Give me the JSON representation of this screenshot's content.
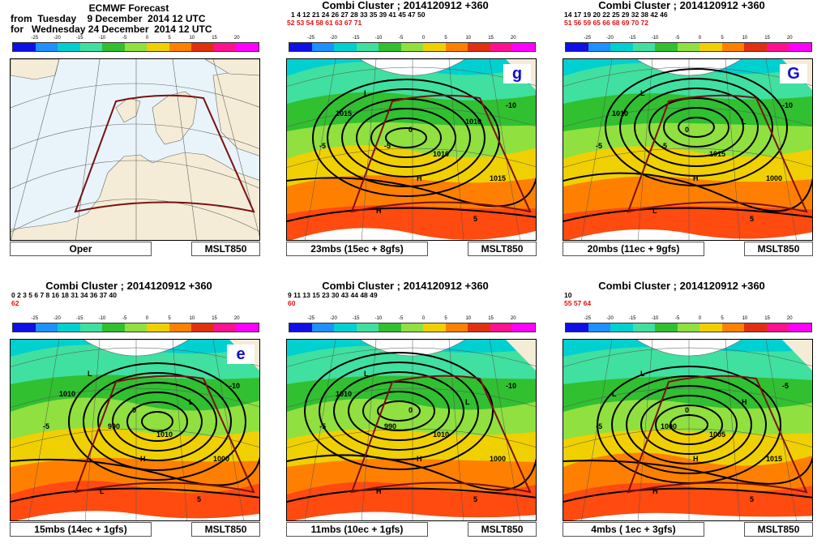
{
  "colorbar": {
    "ticks": [
      "-25",
      "-20",
      "-15",
      "-10",
      "-5",
      "0",
      "5",
      "10",
      "15",
      "20"
    ],
    "colors": [
      "#0f0fe6",
      "#1e90ff",
      "#00d0d0",
      "#40e0a0",
      "#30c030",
      "#90e040",
      "#f0d000",
      "#ff8000",
      "#e03010",
      "#ff1090",
      "#ff00ff"
    ]
  },
  "panels": [
    {
      "id": "oper",
      "title_line1": "ECMWF Forecast",
      "title_line2": "from  Tuesday    9 December  2014 12 UTC",
      "title_line3": "for   Wednesday 24 December  2014 12 UTC",
      "left_label": "Oper",
      "right_label": "MSLT850"
    },
    {
      "id": "g",
      "title": "Combi Cluster ; 2014120912 +360",
      "members_black": "1   4 12 21 24 26 27 28 33 35 39 41 45 47 50",
      "members_red": "52 53 54 58 61  63 67 71",
      "badge": "g",
      "left_label": "23mbs (15ec + 8gfs)",
      "right_label": "MSLT850",
      "labels": [
        "L",
        "H",
        "H",
        "1010",
        "1015",
        "1010",
        "1015",
        "-5",
        "-5",
        "-10",
        "0",
        "5"
      ]
    },
    {
      "id": "G",
      "title": "Combi Cluster ; 2014120912 +360",
      "members_black": "14 17 19 20 22 25 29 32 38 42 46",
      "members_red": "51 56 59 65 66 68 69 70 72",
      "badge": "G",
      "left_label": "20mbs (11ec + 9gfs)",
      "right_label": "MSLT850",
      "labels": [
        "L",
        "L",
        "H",
        "L",
        "1010",
        "1015",
        "1000",
        "-5",
        "-5",
        "-10",
        "0",
        "5"
      ]
    },
    {
      "id": "e",
      "title": "Combi Cluster ; 2014120912 +360",
      "members_black": "0  2  3  5  6  7  8 16 18 31 34 36 37 40",
      "members_red": "62",
      "badge": "e",
      "left_label": "15mbs (14ec + 1gfs)",
      "right_label": "MSLT850",
      "labels": [
        "L",
        "L",
        "H",
        "L",
        "1010",
        "1010",
        "1000",
        "990",
        "-5",
        "-10",
        "0",
        "5"
      ]
    },
    {
      "id": "p5",
      "title": "Combi Cluster ; 2014120912 +360",
      "members_black": "9 11 13 15 23 30 43 44 48 49",
      "members_red": "60",
      "left_label": "11mbs (10ec + 1gfs)",
      "right_label": "MSLT850",
      "labels": [
        "L",
        "H",
        "H",
        "L",
        "1010",
        "1010",
        "1000",
        "990",
        "-5",
        "-10",
        "0",
        "5"
      ]
    },
    {
      "id": "p6",
      "title": "Combi Cluster ; 2014120912 +360",
      "members_black": "10",
      "members_red": "55 57 64",
      "left_label": "4mbs ( 1ec + 3gfs)",
      "right_label": "MSLT850",
      "labels": [
        "L",
        "H",
        "H",
        "H",
        "L",
        "1005",
        "1015",
        "1000",
        "-5",
        "-5",
        "0",
        "5"
      ]
    }
  ]
}
